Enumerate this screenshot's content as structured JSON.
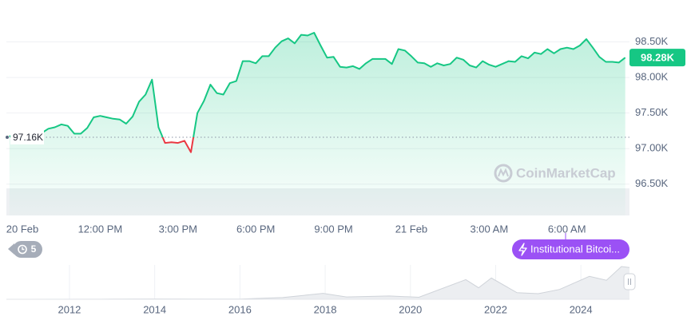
{
  "chart_data": [
    {
      "type": "line",
      "categories": [
        null,
        null,
        "20 Feb",
        null,
        null,
        null,
        null,
        null,
        null,
        null,
        null,
        null,
        null,
        null,
        "12:00 PM",
        null,
        null,
        null,
        null,
        null,
        null,
        null,
        null,
        null,
        null,
        null,
        "3:00 PM",
        null,
        null,
        null,
        null,
        null,
        null,
        null,
        null,
        null,
        null,
        null,
        "6:00 PM",
        null,
        null,
        null,
        null,
        null,
        null,
        null,
        null,
        null,
        null,
        null,
        "9:00 PM",
        null,
        null,
        null,
        null,
        null,
        null,
        null,
        null,
        null,
        null,
        null,
        "21 Feb",
        null,
        null,
        null,
        null,
        null,
        null,
        null,
        null,
        null,
        null,
        null,
        "3:00 AM",
        null,
        null,
        null,
        null,
        null,
        null,
        null,
        null,
        null,
        null,
        null,
        "6:00 AM",
        null,
        null,
        null,
        null,
        null,
        null,
        null,
        null,
        null
      ],
      "values": [
        97170,
        97210,
        97230,
        97240,
        97220,
        97220,
        97280,
        97300,
        97340,
        97320,
        97210,
        97210,
        97290,
        97440,
        97460,
        97440,
        97420,
        97410,
        97350,
        97450,
        97660,
        97760,
        97970,
        97300,
        97080,
        97090,
        97080,
        97110,
        96950,
        97500,
        97670,
        97900,
        97780,
        97760,
        97920,
        97950,
        98230,
        98230,
        98200,
        98300,
        98300,
        98420,
        98510,
        98550,
        98480,
        98600,
        98590,
        98630,
        98450,
        98280,
        98290,
        98150,
        98140,
        98160,
        98120,
        98200,
        98260,
        98260,
        98260,
        98190,
        98400,
        98380,
        98300,
        98210,
        98200,
        98150,
        98200,
        98170,
        98190,
        98280,
        98250,
        98170,
        98140,
        98230,
        98180,
        98150,
        98190,
        98230,
        98220,
        98300,
        98270,
        98350,
        98330,
        98400,
        98340,
        98400,
        98420,
        98400,
        98450,
        98540,
        98420,
        98290,
        98220,
        98220,
        98210,
        98280
      ],
      "color": "#16c784",
      "down_color": "#ea3943",
      "ylim": [
        96060,
        99000
      ],
      "yticks": [
        {
          "value": 96500,
          "label": "96.50K"
        },
        {
          "value": 97000,
          "label": "97.00K"
        },
        {
          "value": 97500,
          "label": "97.50K"
        },
        {
          "value": 98000,
          "label": "98.00K"
        },
        {
          "value": 98500,
          "label": "98.50K"
        }
      ],
      "grid": true,
      "reference": {
        "value": 97160,
        "label": "97.16K"
      },
      "last_label": {
        "value": 98280,
        "label": "98.28K"
      }
    },
    {
      "type": "area",
      "x": [
        2010.6,
        2013,
        2014,
        2016,
        2017,
        2017.95,
        2018.5,
        2019.5,
        2020.2,
        2021.3,
        2021.6,
        2021.9,
        2022.5,
        2023,
        2023.5,
        2024.2,
        2024.6,
        2024.95,
        2025.14
      ],
      "values": [
        0,
        0.5,
        1,
        0.5,
        5,
        18,
        7,
        10,
        6,
        60,
        35,
        65,
        20,
        17,
        30,
        70,
        58,
        100,
        97
      ],
      "xlim": [
        2010.52,
        2025.14
      ],
      "xticks": [
        2012,
        2014,
        2016,
        2018,
        2020,
        2022,
        2024
      ],
      "color": "#cfd3d9"
    }
  ],
  "watermark": "CoinMarketCap",
  "history_badge": "5",
  "news_pill": "Institutional Bitcoi..."
}
